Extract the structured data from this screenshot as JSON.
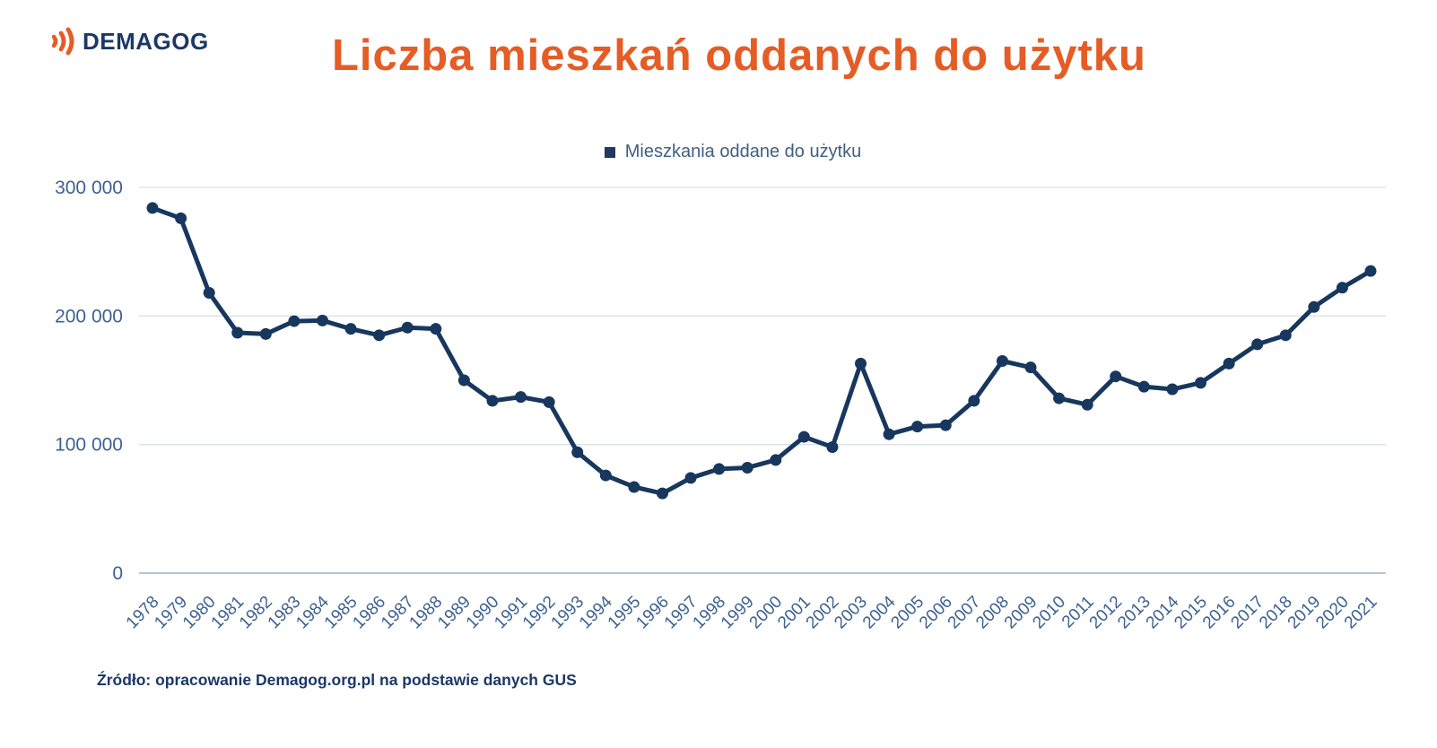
{
  "header": {
    "logo_text": "DEMAGOG",
    "title": "Liczba mieszkań oddanych do użytku"
  },
  "colors": {
    "accent_orange": "#E55C25",
    "brand_navy": "#1C3867",
    "line_navy": "#17375E",
    "legend_marker": "#1F3864",
    "tick_label_blue": "#3D6191",
    "gridline": "#DAE1E9",
    "zero_line": "#A9BCD0"
  },
  "chart_data": {
    "type": "line",
    "title": "Liczba mieszkań oddanych do użytku",
    "legend": "Mieszkania oddane do użytku",
    "legend_position": "top-center",
    "grid": "horizontal-only",
    "line_color": "#17375E",
    "xlabel": "",
    "ylabel": "",
    "ylim": [
      0,
      300000
    ],
    "yticks": [
      {
        "value": 0,
        "label": "0"
      },
      {
        "value": 100000,
        "label": "100 000"
      },
      {
        "value": 200000,
        "label": "200 000"
      },
      {
        "value": 300000,
        "label": "300 000"
      }
    ],
    "x": [
      1978,
      1979,
      1980,
      1981,
      1982,
      1983,
      1984,
      1985,
      1986,
      1987,
      1988,
      1989,
      1990,
      1991,
      1992,
      1993,
      1994,
      1995,
      1996,
      1997,
      1998,
      1999,
      2000,
      2001,
      2002,
      2003,
      2004,
      2005,
      2006,
      2007,
      2008,
      2009,
      2010,
      2011,
      2012,
      2013,
      2014,
      2015,
      2016,
      2017,
      2018,
      2019,
      2020,
      2021
    ],
    "values": [
      284000,
      276000,
      218000,
      187000,
      186000,
      196000,
      196500,
      190000,
      185000,
      191000,
      190000,
      150000,
      134000,
      137000,
      133000,
      94000,
      76000,
      67000,
      62000,
      74000,
      81000,
      82000,
      88000,
      106000,
      98000,
      163000,
      108000,
      114000,
      115000,
      134000,
      165000,
      160000,
      136000,
      131000,
      153000,
      145000,
      143000,
      148000,
      163000,
      178000,
      185000,
      207000,
      222000,
      235000
    ]
  },
  "footer": {
    "source": "Źródło: opracowanie Demagog.org.pl na podstawie danych GUS"
  }
}
